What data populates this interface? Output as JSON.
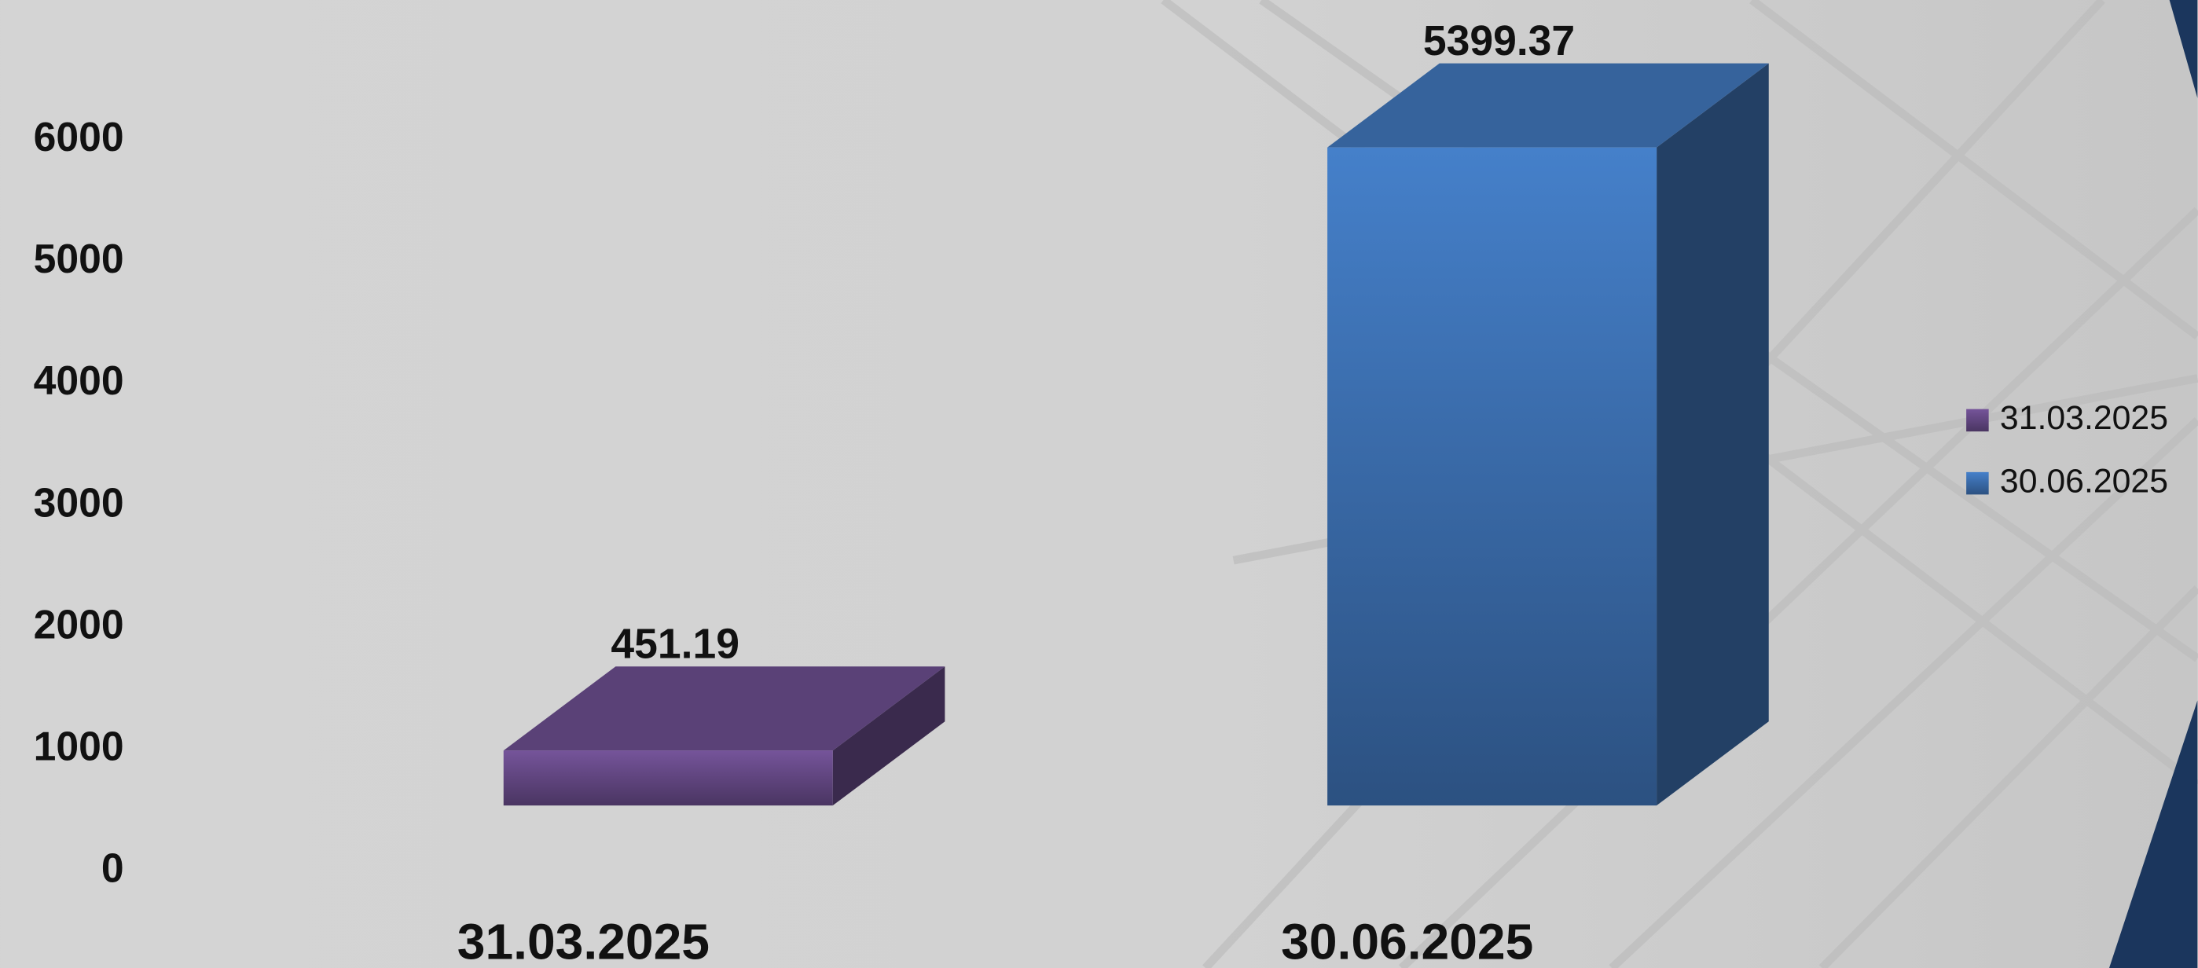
{
  "chart_data": {
    "type": "bar3d",
    "categories": [
      "31.03.2025",
      "30.06.2025"
    ],
    "series": [
      {
        "name": "31.03.2025",
        "color": "#6a4c8c",
        "values": [
          451.19,
          null
        ]
      },
      {
        "name": "30.06.2025",
        "color": "#3f74b8",
        "values": [
          null,
          5399.37
        ]
      }
    ],
    "ylim": [
      0,
      6000
    ],
    "yticks": [
      0,
      1000,
      2000,
      3000,
      4000,
      5000,
      6000
    ],
    "legend": "right"
  }
}
